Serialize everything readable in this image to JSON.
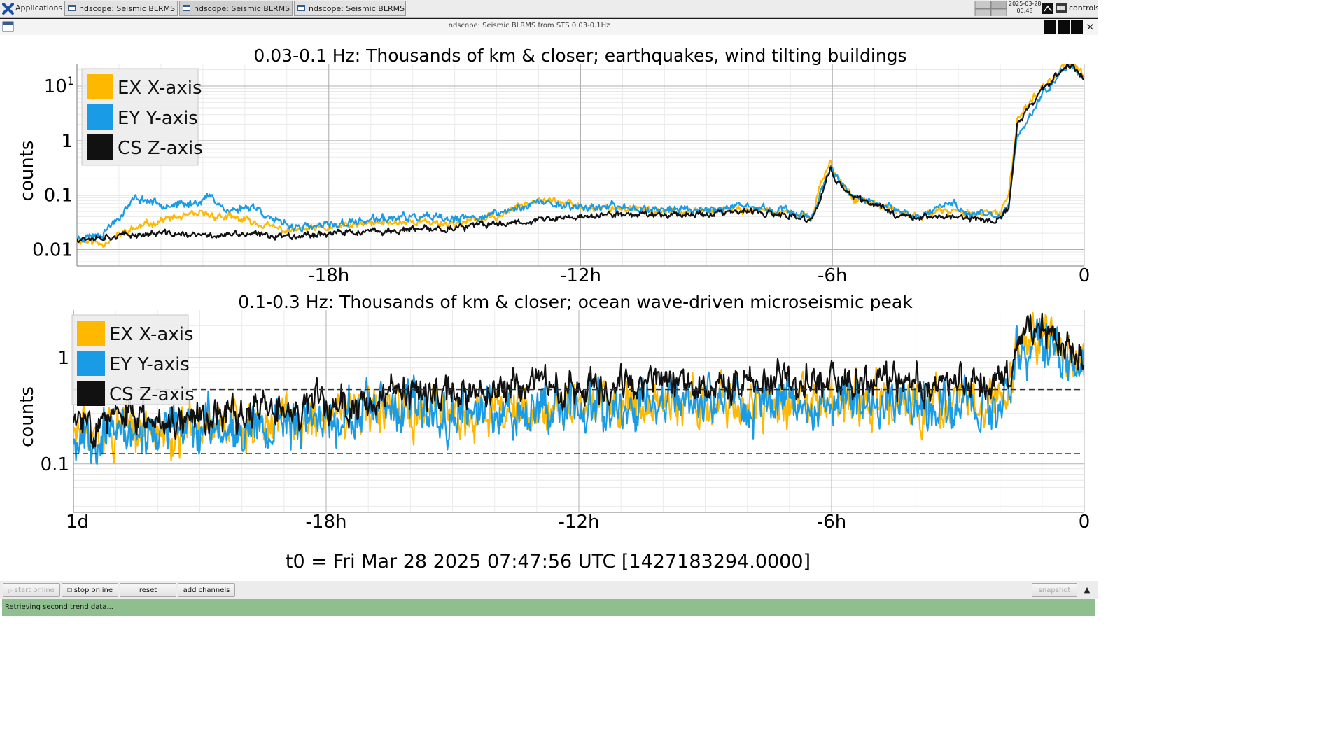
{
  "taskbar": {
    "apps_label": "Applications",
    "windows": [
      {
        "label": "ndscope: Seismic BLRMS f...",
        "active": false
      },
      {
        "label": "ndscope: Seismic BLRMS f...",
        "active": true
      },
      {
        "label": "ndscope: Seismic BLRMS f...",
        "active": false
      }
    ],
    "date": "2025-03-28",
    "time": "00:48",
    "user": "controls"
  },
  "window": {
    "title": "ndscope: Seismic BLRMS from STS 0.03-0.1Hz",
    "close_glyph": "×"
  },
  "chart_data": [
    {
      "type": "line",
      "title": "0.03-0.1 Hz: Thousands of km & closer; earthquakes, wind tilting buildings",
      "ylabel": "counts",
      "xlabel": "",
      "yscale": "log",
      "ylim": [
        0.005,
        25
      ],
      "xlim": [
        -24,
        0
      ],
      "x_unit": "hours",
      "xtick_labels": [
        {
          "x": -18,
          "label": "-18h"
        },
        {
          "x": -12,
          "label": "-12h"
        },
        {
          "x": -6,
          "label": "-6h"
        },
        {
          "x": 0,
          "label": "0"
        }
      ],
      "ytick_labels": [
        {
          "y": 0.01,
          "label": "0.01"
        },
        {
          "y": 0.1,
          "label": "0.1"
        },
        {
          "y": 1,
          "label": "1"
        },
        {
          "y": 10,
          "label": "10",
          "sup": "1"
        }
      ],
      "grid": true,
      "legend_position": "top-left",
      "series": [
        {
          "name": "EX X-axis",
          "color": "#ffb800",
          "seed": 11,
          "noise": 0.09,
          "points": [
            [
              -24,
              0.015
            ],
            [
              -23.4,
              0.013
            ],
            [
              -22.8,
              0.022
            ],
            [
              -22,
              0.035
            ],
            [
              -21,
              0.045
            ],
            [
              -20,
              0.035
            ],
            [
              -19,
              0.022
            ],
            [
              -18,
              0.025
            ],
            [
              -17,
              0.03
            ],
            [
              -16,
              0.033
            ],
            [
              -15,
              0.03
            ],
            [
              -14,
              0.04
            ],
            [
              -13,
              0.09
            ],
            [
              -12.5,
              0.075
            ],
            [
              -12,
              0.06
            ],
            [
              -11,
              0.058
            ],
            [
              -10,
              0.05
            ],
            [
              -9,
              0.05
            ],
            [
              -8,
              0.055
            ],
            [
              -7,
              0.045
            ],
            [
              -6.5,
              0.04
            ],
            [
              -6.3,
              0.15
            ],
            [
              -6.05,
              0.42
            ],
            [
              -5.9,
              0.22
            ],
            [
              -5.5,
              0.09
            ],
            [
              -5,
              0.07
            ],
            [
              -4.5,
              0.05
            ],
            [
              -4,
              0.04
            ],
            [
              -3.5,
              0.05
            ],
            [
              -3,
              0.05
            ],
            [
              -2.5,
              0.045
            ],
            [
              -2,
              0.045
            ],
            [
              -1.8,
              0.1
            ],
            [
              -1.6,
              2.5
            ],
            [
              -1,
              10
            ],
            [
              -0.6,
              18
            ],
            [
              -0.4,
              30
            ],
            [
              -0.2,
              22
            ],
            [
              0,
              15
            ]
          ]
        },
        {
          "name": "EY Y-axis",
          "color": "#1a9be6",
          "seed": 23,
          "noise": 0.1,
          "points": [
            [
              -24,
              0.016
            ],
            [
              -23.4,
              0.02
            ],
            [
              -23,
              0.04
            ],
            [
              -22.6,
              0.09
            ],
            [
              -22,
              0.07
            ],
            [
              -21.4,
              0.065
            ],
            [
              -20.8,
              0.095
            ],
            [
              -20.4,
              0.05
            ],
            [
              -19.8,
              0.065
            ],
            [
              -19.2,
              0.03
            ],
            [
              -18.5,
              0.025
            ],
            [
              -18,
              0.028
            ],
            [
              -17,
              0.035
            ],
            [
              -16,
              0.04
            ],
            [
              -15,
              0.035
            ],
            [
              -14,
              0.045
            ],
            [
              -13,
              0.075
            ],
            [
              -12,
              0.06
            ],
            [
              -11,
              0.06
            ],
            [
              -10,
              0.055
            ],
            [
              -9,
              0.055
            ],
            [
              -8,
              0.06
            ],
            [
              -7,
              0.05
            ],
            [
              -6.5,
              0.04
            ],
            [
              -6.3,
              0.1
            ],
            [
              -6.05,
              0.3
            ],
            [
              -5.9,
              0.2
            ],
            [
              -5.5,
              0.09
            ],
            [
              -5,
              0.075
            ],
            [
              -4.5,
              0.05
            ],
            [
              -4,
              0.04
            ],
            [
              -3.1,
              0.085
            ],
            [
              -3,
              0.05
            ],
            [
              -2.5,
              0.045
            ],
            [
              -2,
              0.04
            ],
            [
              -1.8,
              0.06
            ],
            [
              -1.6,
              1.2
            ],
            [
              -1,
              7
            ],
            [
              -0.6,
              15
            ],
            [
              -0.4,
              25
            ],
            [
              -0.2,
              20
            ],
            [
              0,
              14
            ]
          ]
        },
        {
          "name": "CS Z-axis",
          "color": "#111111",
          "seed": 37,
          "noise": 0.08,
          "points": [
            [
              -24,
              0.016
            ],
            [
              -23,
              0.018
            ],
            [
              -22,
              0.02
            ],
            [
              -21,
              0.018
            ],
            [
              -20,
              0.019
            ],
            [
              -19,
              0.018
            ],
            [
              -18,
              0.02
            ],
            [
              -17,
              0.021
            ],
            [
              -16,
              0.023
            ],
            [
              -15,
              0.025
            ],
            [
              -14,
              0.03
            ],
            [
              -13,
              0.035
            ],
            [
              -12,
              0.04
            ],
            [
              -11,
              0.045
            ],
            [
              -10,
              0.045
            ],
            [
              -9,
              0.045
            ],
            [
              -8,
              0.05
            ],
            [
              -7,
              0.04
            ],
            [
              -6.5,
              0.035
            ],
            [
              -6.3,
              0.08
            ],
            [
              -6.05,
              0.3
            ],
            [
              -5.9,
              0.18
            ],
            [
              -5.5,
              0.09
            ],
            [
              -5,
              0.07
            ],
            [
              -4.5,
              0.045
            ],
            [
              -4,
              0.04
            ],
            [
              -3.5,
              0.04
            ],
            [
              -3,
              0.04
            ],
            [
              -2.5,
              0.035
            ],
            [
              -2,
              0.035
            ],
            [
              -1.8,
              0.06
            ],
            [
              -1.6,
              2.0
            ],
            [
              -1,
              9
            ],
            [
              -0.6,
              16
            ],
            [
              -0.4,
              26
            ],
            [
              -0.2,
              20
            ],
            [
              0,
              14
            ]
          ]
        }
      ]
    },
    {
      "type": "line",
      "title": "0.1-0.3 Hz: Thousands of km & closer; ocean wave-driven microseismic peak",
      "ylabel": "counts",
      "xlabel": "",
      "yscale": "log",
      "ylim": [
        0.035,
        2.8
      ],
      "xlim": [
        -24,
        0
      ],
      "x_unit": "hours",
      "xtick_labels": [
        {
          "x": -24,
          "label": "1d"
        },
        {
          "x": -18,
          "label": "-18h"
        },
        {
          "x": -12,
          "label": "-12h"
        },
        {
          "x": -6,
          "label": "-6h"
        },
        {
          "x": 0,
          "label": "0"
        }
      ],
      "ytick_labels": [
        {
          "y": 0.1,
          "label": "0.1"
        },
        {
          "y": 1,
          "label": "1"
        }
      ],
      "threshold_lines": [
        0.5,
        0.125
      ],
      "grid": true,
      "legend_position": "top-left",
      "series": [
        {
          "name": "EX X-axis",
          "color": "#ffb800",
          "seed": 51,
          "noise": 0.3,
          "points": [
            [
              -24,
              0.2
            ],
            [
              -22,
              0.2
            ],
            [
              -20,
              0.24
            ],
            [
              -18,
              0.27
            ],
            [
              -16,
              0.31
            ],
            [
              -14,
              0.33
            ],
            [
              -12,
              0.37
            ],
            [
              -10,
              0.37
            ],
            [
              -8,
              0.37
            ],
            [
              -6,
              0.36
            ],
            [
              -4,
              0.36
            ],
            [
              -2,
              0.37
            ],
            [
              -1.8,
              0.38
            ],
            [
              -1.6,
              1.6
            ],
            [
              -0.8,
              1.4
            ],
            [
              -0.4,
              1.2
            ],
            [
              0,
              0.8
            ]
          ]
        },
        {
          "name": "EY Y-axis",
          "color": "#1a9be6",
          "seed": 67,
          "noise": 0.3,
          "points": [
            [
              -24,
              0.19
            ],
            [
              -22,
              0.2
            ],
            [
              -20,
              0.23
            ],
            [
              -18,
              0.27
            ],
            [
              -16,
              0.31
            ],
            [
              -14,
              0.33
            ],
            [
              -12,
              0.38
            ],
            [
              -10,
              0.38
            ],
            [
              -8,
              0.37
            ],
            [
              -6,
              0.38
            ],
            [
              -4,
              0.37
            ],
            [
              -2,
              0.36
            ],
            [
              -1.8,
              0.37
            ],
            [
              -1.6,
              1.2
            ],
            [
              -0.8,
              1.3
            ],
            [
              -0.4,
              0.9
            ],
            [
              0,
              0.6
            ]
          ]
        },
        {
          "name": "CS Z-axis",
          "color": "#111111",
          "seed": 83,
          "noise": 0.22,
          "points": [
            [
              -24,
              0.25
            ],
            [
              -22,
              0.27
            ],
            [
              -20,
              0.3
            ],
            [
              -18,
              0.35
            ],
            [
              -16,
              0.42
            ],
            [
              -14,
              0.5
            ],
            [
              -12,
              0.56
            ],
            [
              -10,
              0.6
            ],
            [
              -8,
              0.6
            ],
            [
              -6,
              0.6
            ],
            [
              -4,
              0.58
            ],
            [
              -2,
              0.58
            ],
            [
              -1.8,
              0.6
            ],
            [
              -1.6,
              1.7
            ],
            [
              -0.8,
              1.6
            ],
            [
              -0.4,
              1.4
            ],
            [
              0,
              0.9
            ]
          ]
        }
      ]
    }
  ],
  "footer_text": "t0 = Fri Mar 28 2025 07:47:56 UTC [1427183294.0000]",
  "buttons": {
    "start_online": "start online",
    "stop_online": "stop online",
    "reset": "reset",
    "add_channels": "add channels",
    "snapshot": "snapshot",
    "expand_glyph": "▲"
  },
  "status": "Retrieving second trend data..."
}
